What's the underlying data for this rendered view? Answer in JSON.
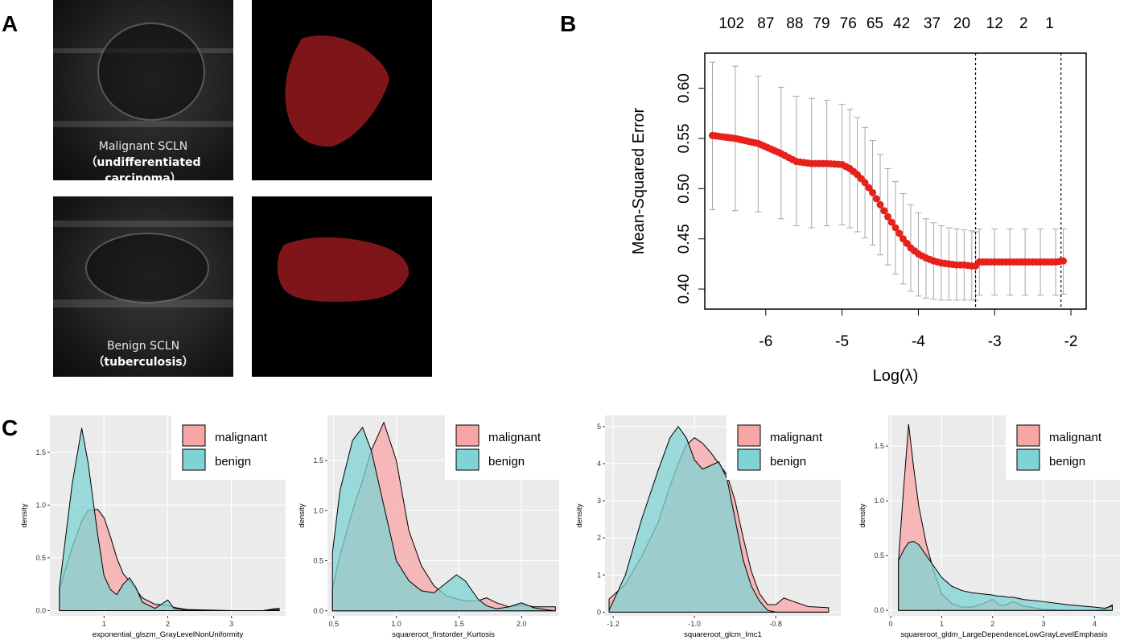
{
  "panels": {
    "a": "A",
    "b": "B",
    "c": "C"
  },
  "panel_a": {
    "top_caption_1": "Malignant SCLN",
    "top_caption_2": "（undifferentiated carcinoma）",
    "bottom_caption_1": "Benign SCLN",
    "bottom_caption_2": "（tuberculosis）",
    "mask_color": "#7e1518"
  },
  "chart_data": [
    {
      "type": "line",
      "panel": "B",
      "title": "",
      "xlabel": "Log(λ)",
      "ylabel": "Mean-Squared Error",
      "xlim": [
        -6.8,
        -1.8
      ],
      "ylim": [
        0.38,
        0.635
      ],
      "xticks": [
        -6,
        -5,
        -4,
        -3,
        -2
      ],
      "yticks": [
        0.4,
        0.45,
        0.5,
        0.55,
        0.6
      ],
      "ytick_labels": [
        "0.40",
        "0.45",
        "0.50",
        "0.55",
        "0.60"
      ],
      "top_axis_labels": [
        "102",
        "87",
        "88",
        "79",
        "76",
        "65",
        "42",
        "37",
        "20",
        "12",
        "2",
        "1"
      ],
      "top_axis_positions": [
        -6.45,
        -6.0,
        -5.62,
        -5.27,
        -4.92,
        -4.57,
        -4.22,
        -3.82,
        -3.43,
        -3.0,
        -2.62,
        -2.28
      ],
      "vlines": [
        -3.25,
        -2.13
      ],
      "point_color": "#e8201c",
      "errorbar_color": "#a6a6a6",
      "x": [
        -6.7,
        -6.4,
        -6.1,
        -5.8,
        -5.6,
        -5.4,
        -5.2,
        -5.0,
        -4.9,
        -4.8,
        -4.7,
        -4.6,
        -4.5,
        -4.4,
        -4.3,
        -4.2,
        -4.1,
        -4.0,
        -3.9,
        -3.8,
        -3.7,
        -3.6,
        -3.5,
        -3.4,
        -3.3,
        -3.25,
        -3.2,
        -3.0,
        -2.8,
        -2.6,
        -2.4,
        -2.2,
        -2.1
      ],
      "mse": [
        0.553,
        0.55,
        0.545,
        0.535,
        0.527,
        0.525,
        0.525,
        0.524,
        0.52,
        0.514,
        0.506,
        0.496,
        0.484,
        0.472,
        0.461,
        0.45,
        0.441,
        0.435,
        0.431,
        0.428,
        0.426,
        0.425,
        0.424,
        0.424,
        0.423,
        0.423,
        0.427,
        0.427,
        0.427,
        0.427,
        0.427,
        0.427,
        0.428
      ],
      "upper": [
        0.626,
        0.622,
        0.612,
        0.601,
        0.592,
        0.59,
        0.588,
        0.584,
        0.579,
        0.571,
        0.561,
        0.548,
        0.534,
        0.52,
        0.507,
        0.495,
        0.484,
        0.476,
        0.47,
        0.466,
        0.463,
        0.461,
        0.46,
        0.459,
        0.458,
        0.457,
        0.46,
        0.46,
        0.46,
        0.46,
        0.46,
        0.46,
        0.46
      ],
      "lower": [
        0.479,
        0.478,
        0.477,
        0.47,
        0.463,
        0.461,
        0.463,
        0.464,
        0.461,
        0.457,
        0.451,
        0.444,
        0.434,
        0.424,
        0.415,
        0.405,
        0.398,
        0.393,
        0.391,
        0.39,
        0.389,
        0.389,
        0.389,
        0.389,
        0.389,
        0.389,
        0.394,
        0.394,
        0.394,
        0.394,
        0.394,
        0.394,
        0.395
      ]
    },
    {
      "type": "area",
      "panel": "C1",
      "xlabel": "exponential_glszm_GrayLevelNonUniformity",
      "ylabel": "density",
      "legend": [
        "malignant",
        "benign"
      ],
      "legend_position": "top-right",
      "colors": {
        "malignant": "#f8a5a6",
        "benign": "#7fd3d4"
      },
      "xlim": [
        0.15,
        3.85
      ],
      "ylim": [
        -0.05,
        1.85
      ],
      "xticks": [
        1,
        2,
        3
      ],
      "yticks": [
        0.0,
        0.5,
        1.0,
        1.5
      ],
      "ytick_labels": [
        "0.0",
        "0.5",
        "1.0",
        "1.5"
      ],
      "x": [
        0.3,
        0.5,
        0.65,
        0.75,
        0.9,
        1.0,
        1.1,
        1.2,
        1.3,
        1.4,
        1.5,
        1.6,
        1.8,
        2.0,
        2.1,
        2.3,
        2.6,
        3.0,
        3.5,
        3.7,
        3.75
      ],
      "malignant": [
        0.2,
        0.6,
        0.85,
        0.95,
        0.96,
        0.88,
        0.7,
        0.5,
        0.35,
        0.28,
        0.2,
        0.12,
        0.06,
        0.05,
        0.03,
        0.01,
        0.005,
        0.0,
        0.0,
        0.02,
        0.02
      ],
      "benign": [
        0.22,
        1.2,
        1.73,
        1.4,
        0.72,
        0.33,
        0.2,
        0.15,
        0.25,
        0.31,
        0.22,
        0.08,
        0.02,
        0.1,
        0.02,
        0.005,
        0.0,
        0.0,
        0.0,
        0.01,
        0.01
      ]
    },
    {
      "type": "area",
      "panel": "C2",
      "xlabel": "squareroot_firstorder_Kurtosis",
      "ylabel": "density",
      "legend": [
        "malignant",
        "benign"
      ],
      "legend_position": "top-right",
      "colors": {
        "malignant": "#f8a5a6",
        "benign": "#7fd3d4"
      },
      "xlim": [
        0.45,
        2.3
      ],
      "ylim": [
        -0.05,
        1.95
      ],
      "xticks": [
        0.5,
        1.0,
        1.5,
        2.0
      ],
      "xtick_labels": [
        "0.5",
        "1.0",
        "1.5",
        "2.0"
      ],
      "yticks": [
        0.0,
        0.5,
        1.0,
        1.5
      ],
      "ytick_labels": [
        "0.0",
        "0.5",
        "1.0",
        "1.5"
      ],
      "x": [
        0.49,
        0.55,
        0.65,
        0.73,
        0.8,
        0.9,
        1.0,
        1.1,
        1.2,
        1.3,
        1.4,
        1.48,
        1.55,
        1.65,
        1.72,
        1.8,
        1.9,
        2.0,
        2.1,
        2.2,
        2.27
      ],
      "malignant": [
        0.23,
        0.55,
        1.0,
        1.3,
        1.6,
        1.88,
        1.5,
        0.8,
        0.45,
        0.25,
        0.15,
        0.12,
        0.1,
        0.1,
        0.13,
        0.08,
        0.04,
        0.06,
        0.04,
        0.04,
        0.04
      ],
      "benign": [
        0.58,
        1.2,
        1.7,
        1.83,
        1.6,
        1.05,
        0.5,
        0.3,
        0.2,
        0.18,
        0.28,
        0.36,
        0.3,
        0.12,
        0.05,
        0.02,
        0.04,
        0.08,
        0.03,
        0.01,
        0.0
      ]
    },
    {
      "type": "area",
      "panel": "C3",
      "xlabel": "squareroot_glcm_Imc1",
      "ylabel": "density",
      "legend": [
        "malignant",
        "benign"
      ],
      "legend_position": "top-right",
      "colors": {
        "malignant": "#f8a5a6",
        "benign": "#7fd3d4"
      },
      "xlim": [
        -1.22,
        -0.64
      ],
      "ylim": [
        -0.1,
        5.3
      ],
      "xticks": [
        -1.2,
        -1.0,
        -0.8
      ],
      "xtick_labels": [
        "-1.2",
        "-1.0",
        "-0.8"
      ],
      "yticks": [
        0,
        1,
        2,
        3,
        4,
        5
      ],
      "ytick_labels": [
        "0",
        "1",
        "2",
        "3",
        "4",
        "5"
      ],
      "x": [
        -1.21,
        -1.17,
        -1.13,
        -1.09,
        -1.06,
        -1.04,
        -1.02,
        -1.0,
        -0.98,
        -0.96,
        -0.94,
        -0.92,
        -0.9,
        -0.88,
        -0.86,
        -0.84,
        -0.82,
        -0.8,
        -0.78,
        -0.76,
        -0.72,
        -0.67
      ],
      "malignant": [
        0.35,
        0.75,
        1.5,
        2.4,
        3.4,
        4.0,
        4.5,
        4.7,
        4.55,
        4.3,
        4.0,
        3.7,
        3.0,
        2.0,
        1.1,
        0.5,
        0.2,
        0.2,
        0.38,
        0.3,
        0.15,
        0.12
      ],
      "benign": [
        0.05,
        1.0,
        2.5,
        3.8,
        4.7,
        5.0,
        4.7,
        4.1,
        3.85,
        3.95,
        4.05,
        3.6,
        2.5,
        1.4,
        0.7,
        0.3,
        0.05,
        0.0,
        0.0,
        0.0,
        0.0,
        0.0
      ]
    },
    {
      "type": "area",
      "panel": "C4",
      "xlabel": "squareroot_gldm_LargeDependenceLowGrayLevelEmphasis",
      "ylabel": "density",
      "legend": [
        "malignant",
        "benign"
      ],
      "legend_position": "top-right",
      "colors": {
        "malignant": "#f8a5a6",
        "benign": "#7fd3d4"
      },
      "xlim": [
        -0.05,
        4.5
      ],
      "ylim": [
        -0.05,
        1.78
      ],
      "xticks": [
        0,
        1,
        2,
        3,
        4
      ],
      "yticks": [
        0.0,
        0.5,
        1.0,
        1.5
      ],
      "ytick_labels": [
        "0.0",
        "0.5",
        "1.0",
        "1.5"
      ],
      "x": [
        0.15,
        0.25,
        0.35,
        0.45,
        0.55,
        0.7,
        0.85,
        1.0,
        1.2,
        1.4,
        1.6,
        1.8,
        2.0,
        2.1,
        2.2,
        2.3,
        2.4,
        2.6,
        3.0,
        3.5,
        4.0,
        4.2,
        4.35
      ],
      "malignant": [
        0.45,
        1.1,
        1.7,
        1.3,
        0.95,
        0.6,
        0.35,
        0.15,
        0.06,
        0.03,
        0.03,
        0.06,
        0.1,
        0.06,
        0.04,
        0.06,
        0.08,
        0.04,
        0.01,
        0.0,
        0.0,
        0.01,
        0.05
      ],
      "benign": [
        0.45,
        0.55,
        0.62,
        0.63,
        0.6,
        0.5,
        0.4,
        0.3,
        0.22,
        0.18,
        0.16,
        0.15,
        0.14,
        0.13,
        0.13,
        0.12,
        0.12,
        0.1,
        0.08,
        0.05,
        0.03,
        0.02,
        0.04
      ]
    }
  ]
}
